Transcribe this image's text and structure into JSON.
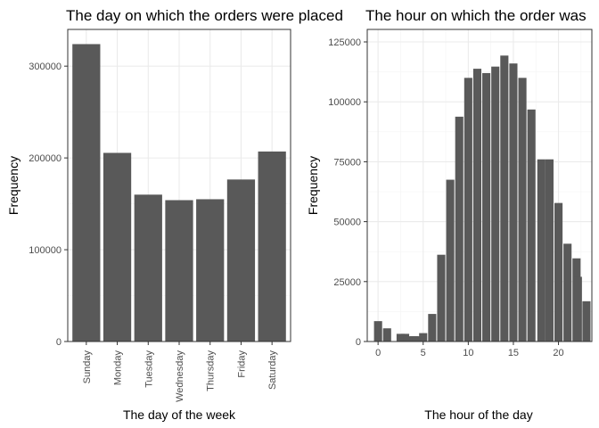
{
  "chart_data": [
    {
      "type": "bar",
      "title": "The day on which the orders were placed",
      "xlabel": "The day of the week",
      "ylabel": "Frequency",
      "ylim": [
        0,
        340000
      ],
      "yticks": [
        0,
        100000,
        200000,
        300000
      ],
      "ytick_labels": [
        "0",
        "100000",
        "200000",
        "300000"
      ],
      "categories": [
        "Sunday",
        "Monday",
        "Tuesday",
        "Wednesday",
        "Thursday",
        "Friday",
        "Saturday"
      ],
      "values": [
        324000,
        205500,
        160000,
        154000,
        155000,
        176500,
        207000
      ],
      "grid": true,
      "bar_color": "#595959"
    },
    {
      "type": "bar",
      "title": "The hour on which the order was",
      "xlabel": "The hour of the day",
      "ylabel": "Frequency",
      "xlim": [
        -1.2,
        23.7
      ],
      "ylim": [
        0,
        125000
      ],
      "xticks": [
        0,
        5,
        10,
        15,
        20
      ],
      "xtick_labels": [
        "0",
        "5",
        "10",
        "15",
        "20"
      ],
      "yticks": [
        0,
        25000,
        50000,
        75000,
        100000,
        125000
      ],
      "ytick_labels": [
        "0",
        "25000",
        "50000",
        "75000",
        "100000",
        "125000"
      ],
      "x": [
        0,
        1,
        2,
        3,
        4,
        5,
        6,
        7,
        8,
        9,
        10,
        11,
        12,
        13,
        14,
        15,
        16,
        17,
        18,
        19,
        20,
        21,
        22,
        23
      ],
      "values": [
        8500,
        5500,
        0,
        3200,
        2200,
        3500,
        11500,
        36200,
        67500,
        93800,
        110000,
        113800,
        112000,
        114700,
        119300,
        116000,
        110000,
        96800,
        0,
        76000,
        57800,
        40800,
        34700,
        0
      ],
      "extra_bars": [
        [
          2.5,
          3200
        ],
        [
          3.3,
          2200
        ],
        [
          4.2,
          2200
        ],
        [
          18.1,
          76000
        ],
        [
          22.15,
          27000
        ],
        [
          23.1,
          16800
        ]
      ],
      "grid": true,
      "bar_color": "#595959"
    }
  ]
}
